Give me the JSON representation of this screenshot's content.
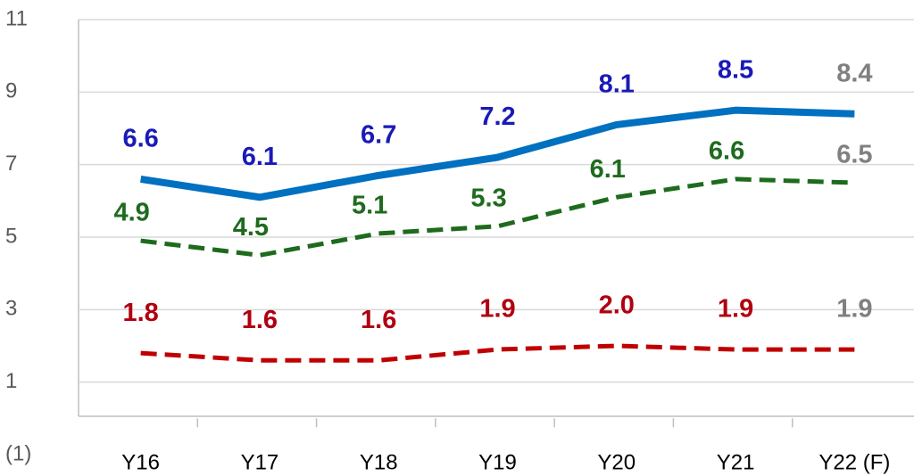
{
  "chart_data": {
    "type": "line",
    "categories": [
      "Y16",
      "Y17",
      "Y18",
      "Y19",
      "Y20",
      "Y21",
      "Y22 (F)"
    ],
    "series": [
      {
        "color": "#0070c0",
        "label_color": "#1a1ab8",
        "dash": false,
        "values": [
          6.6,
          6.1,
          6.7,
          7.2,
          8.1,
          8.5,
          8.4
        ],
        "value_labels": [
          "6.6",
          "6.1",
          "6.7",
          "7.2",
          "8.1",
          "8.5",
          "8.4"
        ]
      },
      {
        "color": "#1e6b1e",
        "label_color": "#1e6b1e",
        "dash": true,
        "values": [
          4.9,
          4.5,
          5.1,
          5.3,
          6.1,
          6.6,
          6.5
        ],
        "value_labels": [
          "4.9",
          "4.5",
          "5.1",
          "5.3",
          "6.1",
          "6.6",
          "6.5"
        ]
      },
      {
        "color": "#c00000",
        "label_color": "#b00010",
        "dash": true,
        "values": [
          1.8,
          1.6,
          1.6,
          1.9,
          2.0,
          1.9,
          1.9
        ],
        "value_labels": [
          "1.8",
          "1.6",
          "1.6",
          "1.9",
          "2.0",
          "1.9",
          "1.9"
        ]
      }
    ],
    "last_label_color": "#808080",
    "ylim": [
      -1,
      11
    ],
    "yticks": [
      {
        "value": -1,
        "label": "(1)"
      },
      1,
      3,
      5,
      7,
      9,
      11
    ],
    "grid": true
  }
}
